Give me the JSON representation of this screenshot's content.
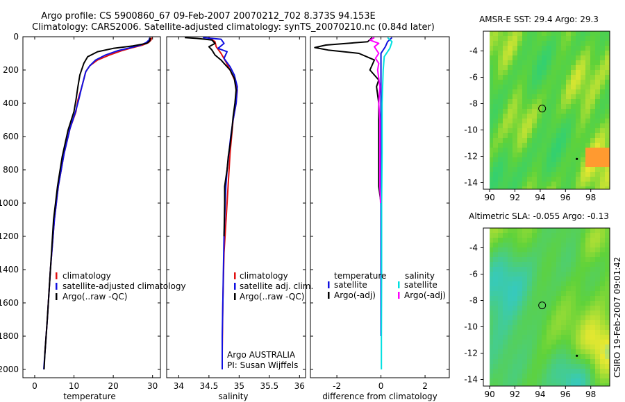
{
  "figure": {
    "title_line1": "Argo profile: CS 5900860_67 09-Feb-2007 20070212_702 8.373S 94.153E",
    "title_line2": "Climatology: CARS2006. Satellite-adjusted climatology: synTS_20070210.nc (0.84d later)",
    "side_label": "CSIRO 19-Feb-2007 09:01:42"
  },
  "chart_data": [
    {
      "id": "temperature",
      "type": "line",
      "xlabel": "temperature",
      "ylabel": "",
      "xlim": [
        -3,
        32
      ],
      "ylim": [
        2050,
        0
      ],
      "y_inverted": true,
      "xticks": [
        0,
        10,
        20,
        30
      ],
      "xtick_labels": [
        "0",
        "10",
        "20",
        "30"
      ],
      "yticks": [
        0,
        200,
        400,
        600,
        800,
        1000,
        1200,
        1400,
        1600,
        1800,
        2000
      ],
      "ytick_labels": [
        "0",
        "200",
        "400",
        "600",
        "800",
        "1000",
        "1200",
        "1400",
        "1600",
        "1800",
        "2000"
      ],
      "legend": [
        "climatology",
        "satellite-adjusted climatology",
        "Argo(..raw -QC)"
      ],
      "series": [
        {
          "name": "climatology",
          "color": "#e01010",
          "points": [
            [
              29.8,
              5
            ],
            [
              29.6,
              20
            ],
            [
              29.0,
              35
            ],
            [
              27.5,
              50
            ],
            [
              25,
              65
            ],
            [
              22,
              85
            ],
            [
              19,
              110
            ],
            [
              16,
              140
            ],
            [
              14,
              175
            ],
            [
              13,
              210
            ],
            [
              12,
              300
            ],
            [
              11,
              380
            ],
            [
              10.5,
              450
            ],
            [
              9,
              550
            ],
            [
              7.5,
              700
            ],
            [
              6,
              900
            ],
            [
              5,
              1100
            ],
            [
              4,
              1400
            ],
            [
              3.2,
              1700
            ],
            [
              2.6,
              1900
            ]
          ]
        },
        {
          "name": "satellite-adjusted climatology",
          "color": "#1010e0",
          "points": [
            [
              29.3,
              5
            ],
            [
              29.1,
              20
            ],
            [
              28.4,
              35
            ],
            [
              27,
              50
            ],
            [
              24.5,
              65
            ],
            [
              21,
              85
            ],
            [
              18,
              110
            ],
            [
              15.5,
              140
            ],
            [
              14,
              175
            ],
            [
              13,
              210
            ],
            [
              12,
              300
            ],
            [
              11.2,
              380
            ],
            [
              10.4,
              450
            ],
            [
              9,
              550
            ],
            [
              7.5,
              700
            ],
            [
              6,
              900
            ],
            [
              5,
              1100
            ],
            [
              4,
              1400
            ],
            [
              3.2,
              1700
            ],
            [
              2.6,
              1900
            ],
            [
              2.3,
              2000
            ]
          ]
        },
        {
          "name": "Argo(..raw -QC)",
          "color": "#000000",
          "points": [
            [
              29.4,
              5
            ],
            [
              29.3,
              25
            ],
            [
              28.5,
              40
            ],
            [
              25,
              55
            ],
            [
              20,
              70
            ],
            [
              16,
              90
            ],
            [
              13.5,
              120
            ],
            [
              12.5,
              160
            ],
            [
              11.5,
              230
            ],
            [
              11,
              300
            ],
            [
              10.5,
              380
            ],
            [
              10,
              450
            ],
            [
              8.5,
              560
            ],
            [
              7,
              720
            ],
            [
              5.8,
              900
            ],
            [
              4.8,
              1100
            ],
            [
              4,
              1400
            ],
            [
              3.2,
              1700
            ],
            [
              2.6,
              1900
            ],
            [
              2.4,
              2000
            ]
          ]
        }
      ]
    },
    {
      "id": "salinity",
      "type": "line",
      "xlabel": "salinity",
      "xlim": [
        33.8,
        36.1
      ],
      "ylim": [
        2050,
        0
      ],
      "y_inverted": true,
      "xticks": [
        34,
        34.5,
        35,
        35.5,
        36
      ],
      "xtick_labels": [
        "34",
        "34.5",
        "35",
        "35.5",
        "36"
      ],
      "legend": [
        "climatology",
        "satellite adj. clim.",
        "Argo(..raw -QC)"
      ],
      "annotation_line1": "Argo AUSTRALIA",
      "annotation_line2": "PI: Susan Wijffels",
      "series": [
        {
          "name": "climatology",
          "color": "#e01010",
          "points": [
            [
              34.5,
              5
            ],
            [
              34.6,
              30
            ],
            [
              34.62,
              60
            ],
            [
              34.7,
              100
            ],
            [
              34.78,
              150
            ],
            [
              34.85,
              200
            ],
            [
              34.95,
              280
            ],
            [
              34.97,
              320
            ],
            [
              34.95,
              400
            ],
            [
              34.9,
              500
            ],
            [
              34.85,
              700
            ],
            [
              34.8,
              1000
            ],
            [
              34.75,
              1300
            ],
            [
              34.73,
              1600
            ],
            [
              34.72,
              1900
            ]
          ]
        },
        {
          "name": "satellite adj. clim.",
          "color": "#1010e0",
          "points": [
            [
              34.4,
              5
            ],
            [
              34.7,
              15
            ],
            [
              34.75,
              40
            ],
            [
              34.65,
              70
            ],
            [
              34.8,
              90
            ],
            [
              34.75,
              130
            ],
            [
              34.85,
              180
            ],
            [
              34.92,
              230
            ],
            [
              34.97,
              300
            ],
            [
              34.95,
              400
            ],
            [
              34.9,
              500
            ],
            [
              34.86,
              600
            ],
            [
              34.83,
              700
            ],
            [
              34.8,
              800
            ],
            [
              34.78,
              900
            ],
            [
              34.77,
              1000
            ],
            [
              34.75,
              1200
            ],
            [
              34.74,
              1400
            ],
            [
              34.73,
              1600
            ],
            [
              34.72,
              1800
            ],
            [
              34.72,
              2000
            ]
          ]
        },
        {
          "name": "Argo(..raw -QC)",
          "color": "#000000",
          "points": [
            [
              34.1,
              5
            ],
            [
              34.3,
              10
            ],
            [
              34.55,
              20
            ],
            [
              34.6,
              40
            ],
            [
              34.5,
              60
            ],
            [
              34.55,
              80
            ],
            [
              34.6,
              110
            ],
            [
              34.7,
              140
            ],
            [
              34.75,
              160
            ],
            [
              34.85,
              200
            ],
            [
              34.92,
              250
            ],
            [
              34.95,
              320
            ],
            [
              34.93,
              400
            ],
            [
              34.9,
              480
            ],
            [
              34.88,
              560
            ],
            [
              34.85,
              650
            ],
            [
              34.82,
              720
            ],
            [
              34.8,
              800
            ],
            [
              34.78,
              850
            ],
            [
              34.76,
              900
            ],
            [
              34.76,
              1000
            ],
            [
              34.75,
              1200
            ]
          ]
        }
      ]
    },
    {
      "id": "difference",
      "type": "line",
      "xlabel": "difference from climatology",
      "xlim": [
        -3.2,
        3.1
      ],
      "ylim": [
        2050,
        0
      ],
      "y_inverted": true,
      "xticks": [
        -2,
        0,
        2
      ],
      "xtick_labels": [
        "-2",
        "0",
        "2"
      ],
      "legend_header_left": "temperature",
      "legend_header_right": "salinity",
      "legend_left": [
        "satellite",
        "Argo(-adj)"
      ],
      "legend_right": [
        "satellite",
        "Argo(-adj)"
      ],
      "series": [
        {
          "name": "temperature satellite",
          "color": "#1010e0",
          "points": [
            [
              0.5,
              5
            ],
            [
              0.3,
              30
            ],
            [
              0.2,
              60
            ],
            [
              0,
              100
            ],
            [
              0,
              300
            ],
            [
              0,
              600
            ],
            [
              0,
              900
            ],
            [
              0,
              1200
            ],
            [
              0,
              1500
            ],
            [
              0,
              1800
            ]
          ]
        },
        {
          "name": "temperature Argo(-adj)",
          "color": "#000000",
          "points": [
            [
              -0.4,
              5
            ],
            [
              -0.6,
              30
            ],
            [
              -2.5,
              50
            ],
            [
              -3.0,
              65
            ],
            [
              -2.4,
              80
            ],
            [
              -1.0,
              100
            ],
            [
              -0.3,
              140
            ],
            [
              -0.5,
              200
            ],
            [
              -0.1,
              260
            ],
            [
              -0.2,
              300
            ],
            [
              -0.1,
              400
            ],
            [
              -0.1,
              500
            ],
            [
              -0.1,
              700
            ],
            [
              -0.1,
              900
            ],
            [
              0,
              1000
            ]
          ]
        },
        {
          "name": "salinity satellite",
          "color": "#00e0e0",
          "points": [
            [
              0.3,
              5
            ],
            [
              0.5,
              30
            ],
            [
              0.4,
              70
            ],
            [
              0.15,
              120
            ],
            [
              0.1,
              200
            ],
            [
              0.05,
              400
            ],
            [
              0.05,
              700
            ],
            [
              0.03,
              1000
            ],
            [
              0.03,
              1400
            ],
            [
              0.02,
              1800
            ],
            [
              0.02,
              2000
            ]
          ]
        },
        {
          "name": "salinity Argo(-adj)",
          "color": "#ff00ff",
          "points": [
            [
              -0.3,
              5
            ],
            [
              -0.5,
              20
            ],
            [
              -0.1,
              40
            ],
            [
              -0.3,
              60
            ],
            [
              -0.2,
              80
            ],
            [
              -0.1,
              100
            ],
            [
              -0.25,
              130
            ],
            [
              -0.1,
              160
            ],
            [
              -0.15,
              200
            ],
            [
              -0.05,
              300
            ],
            [
              -0.1,
              400
            ],
            [
              -0.05,
              500
            ],
            [
              -0.05,
              700
            ],
            [
              -0.05,
              900
            ],
            [
              -0.02,
              1000
            ]
          ]
        }
      ]
    },
    {
      "id": "sst-map",
      "type": "heatmap",
      "title": "AMSR-E SST: 29.4 Argo: 29.3",
      "xlim": [
        89.5,
        99.5
      ],
      "ylim": [
        -14.5,
        -2.5
      ],
      "xticks": [
        90,
        92,
        94,
        96,
        98
      ],
      "xtick_labels": [
        "90",
        "92",
        "94",
        "96",
        "98"
      ],
      "yticks": [
        -4,
        -6,
        -8,
        -10,
        -12,
        -14
      ],
      "ytick_labels": [
        "-4",
        "-6",
        "-8",
        "-10",
        "-12",
        "-14"
      ],
      "nodata_band_lon": [
        89.5,
        90.0
      ],
      "argo_position": [
        94.153,
        -8.373
      ],
      "track_point": [
        96.9,
        -12.2
      ],
      "colors": {
        "low": "#2bd07a",
        "mid": "#5fd23a",
        "high": "#e8e830",
        "peak": "#ff9a30"
      }
    },
    {
      "id": "sla-map",
      "type": "heatmap",
      "title": "Altimetric SLA: -0.055 Argo: -0.13",
      "xlim": [
        89.5,
        99.5
      ],
      "ylim": [
        -14.5,
        -2.5
      ],
      "xticks": [
        90,
        92,
        94,
        96,
        98
      ],
      "xtick_labels": [
        "90",
        "92",
        "94",
        "96",
        "98"
      ],
      "yticks": [
        -4,
        -6,
        -8,
        -10,
        -12,
        -14
      ],
      "ytick_labels": [
        "-4",
        "-6",
        "-8",
        "-10",
        "-12",
        "-14"
      ],
      "nodata_band_lon": [
        89.5,
        90.0
      ],
      "argo_position": [
        94.153,
        -8.373
      ],
      "track_point": [
        96.9,
        -12.2
      ],
      "colors": {
        "low": "#30c8d0",
        "mid": "#5fd23a",
        "high": "#e8e830",
        "peak": "#40d8f0"
      }
    }
  ]
}
